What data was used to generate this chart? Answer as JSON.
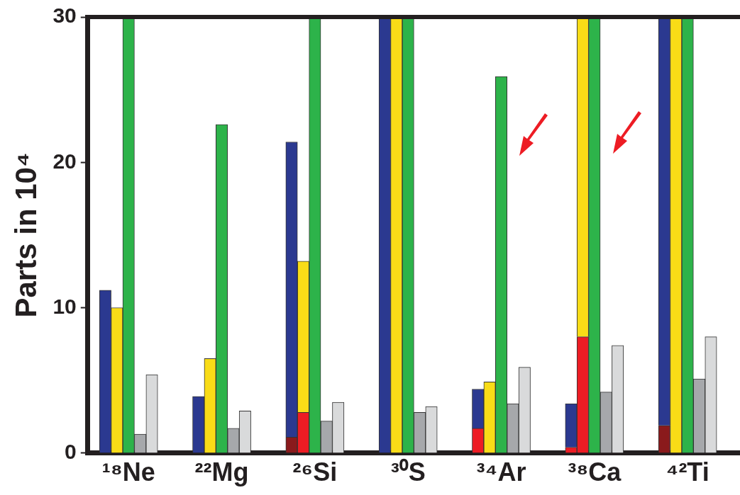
{
  "chart_data": {
    "type": "bar",
    "stacked": true,
    "ylabel": "Parts in 10⁴",
    "categories": [
      null,
      null,
      null,
      "¹⁸Ne",
      null,
      null,
      null,
      null,
      null,
      null,
      null,
      "²²Mg",
      null,
      null,
      null,
      null,
      null,
      null,
      null,
      "²⁶Si",
      null,
      null,
      null,
      null,
      null,
      null,
      null,
      "³⁰S",
      null,
      null,
      null,
      null,
      null,
      null,
      null,
      "³⁴Ar",
      null,
      null,
      null,
      null,
      null,
      null,
      null,
      "³⁸Ca",
      null,
      null,
      null,
      null,
      null,
      null,
      null,
      "⁴²Ti",
      null,
      null,
      null,
      null
    ],
    "series": [
      {
        "color": "#ed1c24",
        "colors": [
          null,
          null,
          null,
          null,
          null,
          null,
          null,
          null,
          null,
          null,
          null,
          null,
          null,
          null,
          null,
          null,
          null,
          "#8a1a1c",
          null,
          null,
          null,
          null,
          null,
          null,
          null,
          null,
          null,
          null,
          null,
          null,
          null,
          null,
          null,
          null,
          null,
          null,
          null,
          null,
          null,
          null,
          null,
          null,
          null,
          null,
          null,
          null,
          null,
          null,
          null,
          "#8a1a1c",
          null,
          null,
          null,
          null,
          null,
          null
        ],
        "values": [
          null,
          null,
          null,
          null,
          null,
          null,
          null,
          null,
          null,
          null,
          null,
          null,
          null,
          null,
          null,
          null,
          null,
          1.1,
          2.8,
          null,
          null,
          null,
          null,
          null,
          null,
          null,
          null,
          null,
          null,
          null,
          null,
          null,
          null,
          1.7,
          null,
          null,
          null,
          null,
          null,
          null,
          null,
          0.4,
          8.0,
          null,
          null,
          null,
          null,
          null,
          null,
          1.9,
          null,
          null,
          null,
          null,
          null,
          null
        ]
      },
      {
        "color": "#2b3990",
        "values": [
          null,
          11.2,
          null,
          null,
          null,
          null,
          null,
          null,
          null,
          3.9,
          null,
          null,
          null,
          null,
          null,
          null,
          null,
          20.3,
          null,
          null,
          null,
          null,
          null,
          null,
          null,
          30,
          null,
          null,
          null,
          null,
          null,
          null,
          null,
          2.7,
          null,
          null,
          null,
          null,
          null,
          null,
          null,
          3.0,
          null,
          null,
          null,
          null,
          null,
          null,
          null,
          28.1,
          null,
          null,
          null,
          null,
          null,
          null
        ]
      },
      {
        "color": "#f9dc17",
        "values": [
          null,
          null,
          10.0,
          null,
          null,
          null,
          null,
          null,
          null,
          null,
          6.5,
          null,
          null,
          null,
          null,
          null,
          null,
          null,
          10.4,
          null,
          null,
          null,
          null,
          null,
          null,
          null,
          30,
          null,
          null,
          null,
          null,
          null,
          null,
          null,
          4.9,
          null,
          null,
          null,
          null,
          null,
          null,
          null,
          22.0,
          null,
          null,
          null,
          null,
          null,
          null,
          null,
          30,
          null,
          null,
          null,
          null,
          null
        ]
      },
      {
        "color": "#2db34a",
        "values": [
          null,
          null,
          null,
          30,
          null,
          null,
          null,
          null,
          null,
          null,
          null,
          22.6,
          null,
          null,
          null,
          null,
          null,
          null,
          null,
          30,
          null,
          null,
          null,
          null,
          null,
          null,
          null,
          30,
          null,
          null,
          null,
          null,
          null,
          null,
          null,
          25.9,
          null,
          null,
          null,
          null,
          null,
          null,
          null,
          30,
          null,
          null,
          null,
          null,
          null,
          null,
          null,
          30,
          null,
          null,
          null,
          null
        ]
      },
      {
        "color": "#a6a8ab",
        "values": [
          null,
          null,
          null,
          null,
          1.3,
          null,
          null,
          null,
          null,
          null,
          null,
          null,
          1.7,
          null,
          null,
          null,
          null,
          null,
          null,
          null,
          2.2,
          null,
          null,
          null,
          null,
          null,
          null,
          null,
          2.8,
          null,
          null,
          null,
          null,
          null,
          null,
          null,
          3.4,
          null,
          null,
          null,
          null,
          null,
          null,
          null,
          4.2,
          null,
          null,
          null,
          null,
          null,
          null,
          null,
          5.1,
          null,
          null,
          null
        ]
      },
      {
        "color": "#d9dadb",
        "values": [
          null,
          null,
          null,
          null,
          null,
          5.4,
          null,
          null,
          null,
          null,
          null,
          null,
          null,
          2.9,
          null,
          null,
          null,
          null,
          null,
          null,
          null,
          3.5,
          null,
          null,
          null,
          null,
          null,
          null,
          null,
          3.2,
          null,
          null,
          null,
          null,
          null,
          null,
          null,
          5.9,
          null,
          null,
          null,
          null,
          null,
          null,
          null,
          7.4,
          null,
          null,
          null,
          null,
          null,
          null,
          null,
          8.0,
          null,
          null
        ]
      }
    ],
    "ylim": [
      0,
      30
    ],
    "yticks": [
      0,
      10,
      20,
      30
    ],
    "grid": false,
    "legend": false
  }
}
